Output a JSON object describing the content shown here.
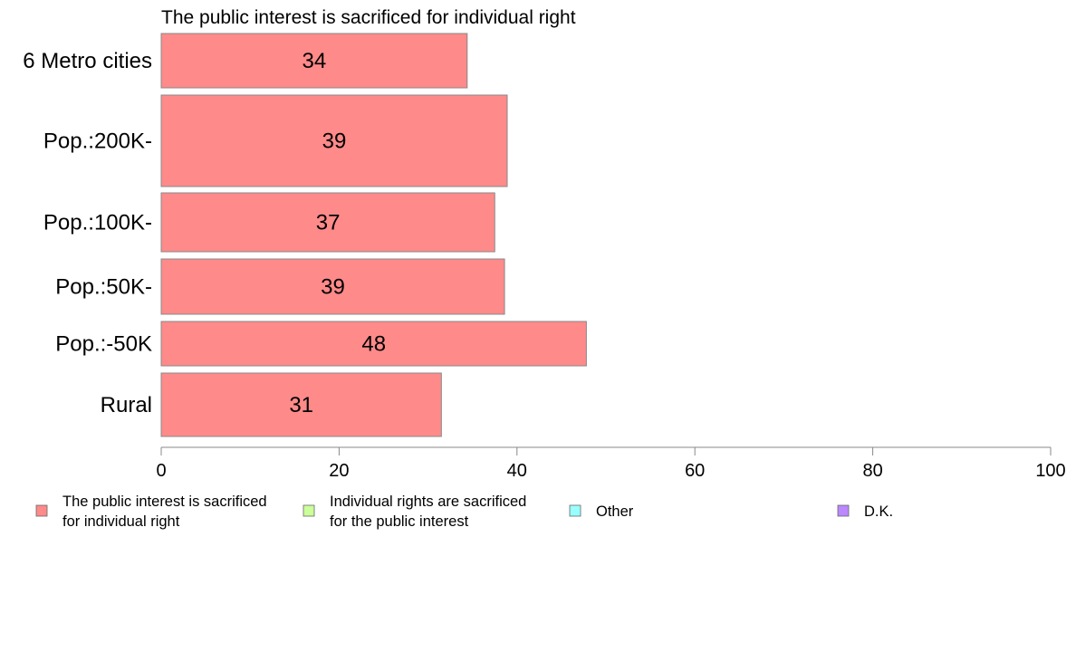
{
  "chart_data": {
    "type": "bar",
    "orientation": "horizontal",
    "title": "The public interest is sacrificed for individual right",
    "categories": [
      "6 Metro cities",
      "Pop.:200K-",
      "Pop.:100K-",
      "Pop.:50K-",
      "Pop.:-50K",
      "Rural"
    ],
    "series": [
      {
        "name": "The public interest is sacrificed for individual right",
        "values": [
          34.4,
          38.9,
          37.5,
          38.6,
          47.8,
          31.5
        ],
        "labels": [
          "34",
          "39",
          "37",
          "39",
          "48",
          "31"
        ]
      }
    ],
    "xlim": [
      0,
      100
    ],
    "xticks": [
      "0",
      "20",
      "40",
      "60",
      "80",
      "100"
    ],
    "xlabel": "",
    "ylabel": "",
    "grid": false,
    "legend_position": "bottom",
    "legend": [
      {
        "lines": [
          "The public interest is sacrificed",
          "for individual right"
        ],
        "color": "#ff8a8a"
      },
      {
        "lines": [
          "Individual rights are sacrificed",
          "for the public interest"
        ],
        "color": "#ccff99"
      },
      {
        "lines": [
          "Other"
        ],
        "color": "#99ffff"
      },
      {
        "lines": [
          "D.K."
        ],
        "color": "#bb88ff"
      }
    ],
    "colors": {
      "bar": "#ff8a8a",
      "bar_edge": "#888888",
      "axis": "#888888"
    }
  }
}
